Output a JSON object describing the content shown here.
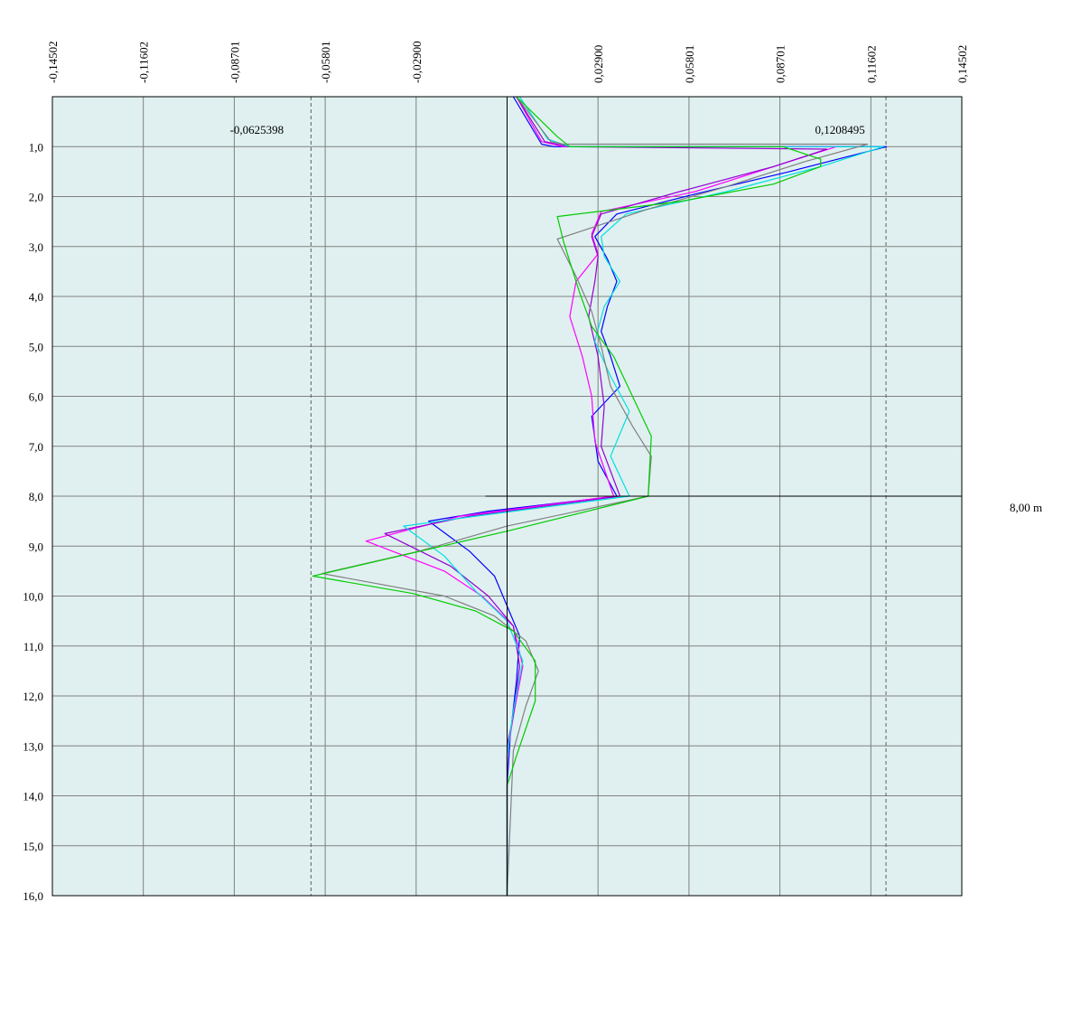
{
  "chart_data": {
    "type": "line",
    "orientation": "depth-profile",
    "title": "",
    "xlabel": "",
    "ylabel": "",
    "xlim": [
      -0.14502,
      0.14502
    ],
    "ylim": [
      0,
      16
    ],
    "y_inverted": true,
    "grid": true,
    "legend": "none",
    "x_tick_labels": [
      "-0,14502",
      "-0,11602",
      "-0,08701",
      "-0,05801",
      "-0,02900",
      "0,02900",
      "0,05801",
      "0,08701",
      "0,11602",
      "0,14502"
    ],
    "x_tick_values": [
      -0.14502,
      -0.11602,
      -0.08701,
      -0.05801,
      -0.029,
      0.029,
      0.05801,
      0.08701,
      0.11602,
      0.14502
    ],
    "y_tick_labels": [
      "1,0",
      "2,0",
      "3,0",
      "4,0",
      "5,0",
      "6,0",
      "7,0",
      "8,0",
      "9,0",
      "10,0",
      "11,0",
      "12,0",
      "13,0",
      "14,0",
      "15,0",
      "16,0"
    ],
    "y_tick_values": [
      1,
      2,
      3,
      4,
      5,
      6,
      7,
      8,
      9,
      10,
      11,
      12,
      13,
      14,
      15,
      16
    ],
    "min_marker": {
      "value": -0.0625398,
      "label": "-0,0625398"
    },
    "max_marker": {
      "value": 0.1208495,
      "label": "0,1208495"
    },
    "level_marker": {
      "depth": 8.0,
      "label": "8,00 m"
    },
    "series": [
      {
        "color": "#0000ff",
        "points": [
          [
            0.002,
            0
          ],
          [
            0.011,
            0.95
          ],
          [
            0.015,
            1.0
          ],
          [
            0.121,
            1.0
          ],
          [
            0.09,
            1.5
          ],
          [
            0.06,
            1.95
          ],
          [
            0.035,
            2.35
          ],
          [
            0.028,
            2.8
          ],
          [
            0.032,
            3.25
          ],
          [
            0.035,
            3.7
          ],
          [
            0.032,
            4.2
          ],
          [
            0.03,
            4.7
          ],
          [
            0.033,
            5.2
          ],
          [
            0.036,
            5.8
          ],
          [
            0.027,
            6.4
          ],
          [
            0.029,
            7.3
          ],
          [
            0.035,
            8.0
          ],
          [
            -0.006,
            8.3
          ],
          [
            -0.025,
            8.5
          ],
          [
            -0.012,
            9.1
          ],
          [
            -0.004,
            9.6
          ],
          [
            0.0,
            10.2
          ],
          [
            0.004,
            10.8
          ],
          [
            0.003,
            11.7
          ],
          [
            0.001,
            12.8
          ],
          [
            0.0,
            13.8
          ],
          [
            0.0,
            16.0
          ]
        ]
      },
      {
        "color": "#ff00ff",
        "points": [
          [
            0.003,
            0
          ],
          [
            0.011,
            0.9
          ],
          [
            0.018,
            1.0
          ],
          [
            0.105,
            1.0
          ],
          [
            0.09,
            1.3
          ],
          [
            0.06,
            1.9
          ],
          [
            0.03,
            2.3
          ],
          [
            0.027,
            2.75
          ],
          [
            0.029,
            3.15
          ],
          [
            0.022,
            3.7
          ],
          [
            0.02,
            4.4
          ],
          [
            0.024,
            5.2
          ],
          [
            0.027,
            6.0
          ],
          [
            0.028,
            6.9
          ],
          [
            0.034,
            8.0
          ],
          [
            -0.015,
            8.4
          ],
          [
            -0.045,
            8.9
          ],
          [
            -0.02,
            9.5
          ],
          [
            -0.008,
            10.0
          ],
          [
            0.002,
            10.6
          ],
          [
            0.005,
            11.4
          ],
          [
            0.002,
            12.4
          ],
          [
            0.0,
            13.2
          ],
          [
            0.0,
            16.0
          ]
        ]
      },
      {
        "color": "#9400d3",
        "points": [
          [
            0.003,
            0
          ],
          [
            0.012,
            0.9
          ],
          [
            0.02,
            1.0
          ],
          [
            0.102,
            1.05
          ],
          [
            0.085,
            1.4
          ],
          [
            0.055,
            1.9
          ],
          [
            0.03,
            2.35
          ],
          [
            0.027,
            2.8
          ],
          [
            0.029,
            3.2
          ],
          [
            0.028,
            3.7
          ],
          [
            0.026,
            4.4
          ],
          [
            0.029,
            5.2
          ],
          [
            0.031,
            6.2
          ],
          [
            0.03,
            7.0
          ],
          [
            0.036,
            8.0
          ],
          [
            -0.012,
            8.4
          ],
          [
            -0.039,
            8.75
          ],
          [
            -0.018,
            9.4
          ],
          [
            -0.006,
            10.0
          ],
          [
            0.002,
            10.6
          ],
          [
            0.004,
            11.4
          ],
          [
            0.002,
            12.4
          ],
          [
            0.0,
            13.0
          ],
          [
            0.0,
            16.0
          ]
        ]
      },
      {
        "color": "#00e0e0",
        "points": [
          [
            0.004,
            0
          ],
          [
            0.013,
            0.85
          ],
          [
            0.02,
            1.0
          ],
          [
            0.12,
            1.0
          ],
          [
            0.1,
            1.4
          ],
          [
            0.07,
            1.9
          ],
          [
            0.038,
            2.35
          ],
          [
            0.03,
            2.8
          ],
          [
            0.031,
            3.2
          ],
          [
            0.036,
            3.7
          ],
          [
            0.031,
            4.2
          ],
          [
            0.028,
            4.9
          ],
          [
            0.033,
            5.6
          ],
          [
            0.039,
            6.3
          ],
          [
            0.033,
            7.2
          ],
          [
            0.039,
            8.0
          ],
          [
            -0.01,
            8.4
          ],
          [
            -0.033,
            8.6
          ],
          [
            -0.02,
            9.2
          ],
          [
            -0.01,
            9.9
          ],
          [
            0.0,
            10.5
          ],
          [
            0.005,
            11.3
          ],
          [
            0.002,
            12.3
          ],
          [
            0.0,
            13.2
          ],
          [
            0.0,
            16.0
          ]
        ]
      },
      {
        "color": "#808080",
        "points": [
          [
            0.003,
            0
          ],
          [
            0.014,
            0.9
          ],
          [
            0.018,
            0.95
          ],
          [
            0.115,
            0.95
          ],
          [
            0.095,
            1.3
          ],
          [
            0.07,
            1.8
          ],
          [
            0.045,
            2.25
          ],
          [
            0.016,
            2.85
          ],
          [
            0.022,
            3.6
          ],
          [
            0.027,
            4.3
          ],
          [
            0.03,
            5.0
          ],
          [
            0.033,
            5.8
          ],
          [
            0.04,
            6.6
          ],
          [
            0.046,
            7.2
          ],
          [
            0.045,
            8.0
          ],
          [
            0.0,
            8.6
          ],
          [
            -0.028,
            9.1
          ],
          [
            -0.059,
            9.55
          ],
          [
            -0.02,
            10.0
          ],
          [
            -0.004,
            10.4
          ],
          [
            0.006,
            10.9
          ],
          [
            0.01,
            11.5
          ],
          [
            0.006,
            12.2
          ],
          [
            0.002,
            13.1
          ],
          [
            0.0,
            16.0
          ]
        ]
      },
      {
        "color": "#00cc00",
        "points": [
          [
            0.003,
            0
          ],
          [
            0.016,
            0.8
          ],
          [
            0.02,
            1.0
          ],
          [
            0.088,
            1.0
          ],
          [
            0.1,
            1.25
          ],
          [
            0.1,
            1.4
          ],
          [
            0.085,
            1.75
          ],
          [
            0.055,
            2.1
          ],
          [
            0.016,
            2.4
          ],
          [
            0.018,
            2.9
          ],
          [
            0.02,
            3.3
          ],
          [
            0.023,
            3.9
          ],
          [
            0.027,
            4.6
          ],
          [
            0.034,
            5.2
          ],
          [
            0.04,
            6.0
          ],
          [
            0.046,
            6.8
          ],
          [
            0.045,
            8.0
          ],
          [
            0.0,
            8.7
          ],
          [
            -0.062,
            9.6
          ],
          [
            -0.03,
            9.95
          ],
          [
            -0.01,
            10.3
          ],
          [
            0.002,
            10.7
          ],
          [
            0.009,
            11.3
          ],
          [
            0.009,
            12.1
          ],
          [
            0.003,
            13.2
          ],
          [
            0.0,
            13.8
          ],
          [
            0.0,
            16.0
          ]
        ]
      }
    ]
  }
}
